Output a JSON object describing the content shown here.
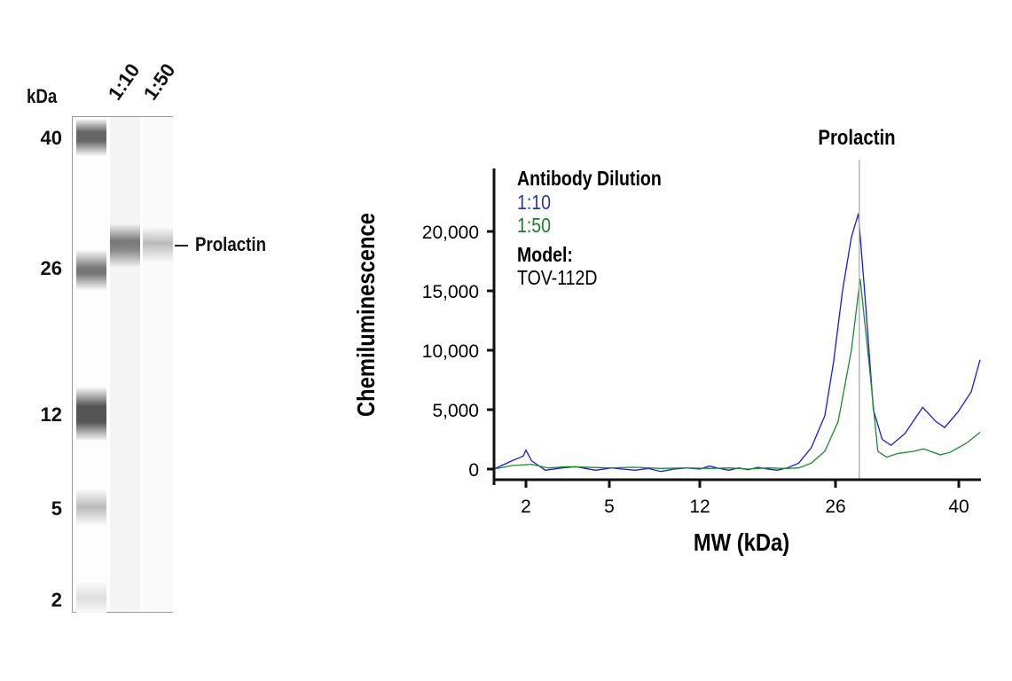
{
  "gel": {
    "unit_label": "kDa",
    "lanes": [
      "1:10",
      "1:50"
    ],
    "markers": [
      "40",
      "26",
      "12",
      "5",
      "2"
    ],
    "target_label": "Prolactin"
  },
  "chart_data": {
    "type": "line",
    "title": "Prolactin",
    "xlabel": "MW (kDa)",
    "ylabel": "Chemiluminescence",
    "x_ticks": [
      2,
      5,
      12,
      26,
      40
    ],
    "x_tick_labels": [
      "2",
      "5",
      "12",
      "26",
      "40"
    ],
    "y_ticks": [
      0,
      5000,
      10000,
      15000,
      20000
    ],
    "y_tick_labels": [
      "0",
      "5,000",
      "10,000",
      "15,000",
      "20,000"
    ],
    "xlim": [
      0.85,
      42.4
    ],
    "ylim": [
      -800,
      25000
    ],
    "reference_line_x": 28.7,
    "grid": false,
    "legend": {
      "placement": "top-left",
      "title": "Antibody Dilution",
      "model_label": "Model:",
      "model_value": "TOV-112D"
    },
    "series": [
      {
        "name": "1:10",
        "color": "#1a1adc",
        "x": [
          0.85,
          1.4,
          1.9,
          2.0,
          2.2,
          2.7,
          3.3,
          3.8,
          4.5,
          5.2,
          6,
          7,
          8,
          9,
          10,
          11,
          12,
          13,
          14,
          15,
          16,
          17,
          18,
          19,
          20,
          21,
          22.2,
          23.5,
          24.9,
          25.8,
          26.8,
          27.8,
          28.6,
          29.3,
          30.3,
          31.3,
          32.3,
          33.9,
          35.9,
          37.4,
          38.4,
          39.9,
          41.4,
          42.4
        ],
        "y": [
          0,
          600,
          1100,
          1600,
          700,
          -100,
          100,
          200,
          -100,
          100,
          0,
          -100,
          50,
          -200,
          0,
          100,
          0,
          250,
          50,
          -100,
          100,
          -50,
          150,
          0,
          -100,
          100,
          500,
          1800,
          4500,
          9000,
          15000,
          19500,
          21500,
          15000,
          5000,
          2500,
          2000,
          3000,
          5200,
          4000,
          3500,
          4800,
          6500,
          9200
        ]
      },
      {
        "name": "1:50",
        "color": "#1e8a2e",
        "x": [
          0.85,
          1.5,
          2.2,
          2.8,
          3.5,
          5,
          7,
          9,
          11,
          13,
          15,
          17,
          19,
          21,
          22.2,
          23.5,
          24.9,
          26.3,
          27.8,
          28.8,
          29.8,
          30.8,
          31.8,
          33,
          34.9,
          36,
          37.9,
          39,
          40.9,
          42.4
        ],
        "y": [
          0,
          300,
          400,
          100,
          200,
          100,
          150,
          50,
          100,
          50,
          100,
          0,
          100,
          50,
          100,
          500,
          1500,
          4000,
          10000,
          16000,
          9000,
          1500,
          1000,
          1300,
          1500,
          1700,
          1200,
          1400,
          2200,
          3100
        ]
      }
    ]
  }
}
